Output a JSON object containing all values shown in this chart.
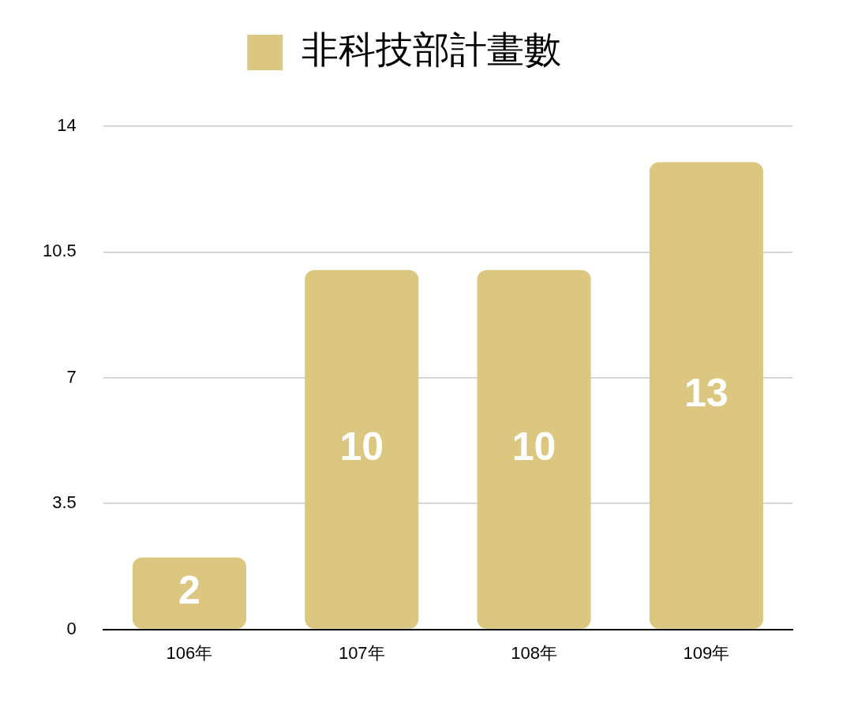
{
  "chart_data": {
    "type": "bar",
    "categories": [
      "106年",
      "107年",
      "108年",
      "109年"
    ],
    "series": [
      {
        "name": "非科技部計畫數",
        "color": "#dbc780",
        "values": [
          2,
          10,
          10,
          13
        ]
      }
    ],
    "ylim": [
      0,
      14
    ],
    "yticks": [
      0,
      3.5,
      7,
      10.5,
      14
    ],
    "grid": "y",
    "legend": "top",
    "data_labels": true
  }
}
